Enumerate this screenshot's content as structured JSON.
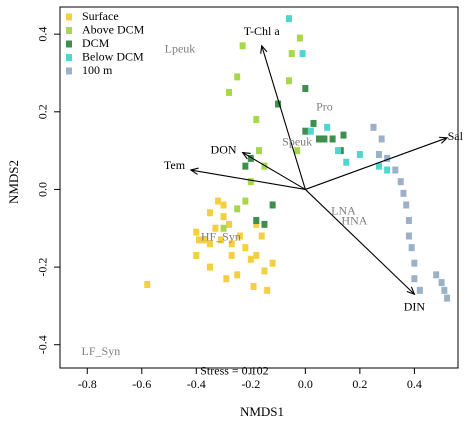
{
  "chart_data": {
    "type": "scatter",
    "xlabel": "NMDS1",
    "ylabel": "NMDS2",
    "xlim": [
      -0.9,
      0.56
    ],
    "ylim": [
      -0.46,
      0.47
    ],
    "x_ticks": [
      -0.8,
      -0.6,
      -0.4,
      -0.2,
      0.0,
      0.2,
      0.4
    ],
    "y_ticks": [
      -0.4,
      -0.2,
      0.0,
      0.2,
      0.4
    ],
    "legend": "top-left",
    "colors": {
      "Surface": "#F4D03F",
      "Above DCM": "#A8D84A",
      "DCM": "#3E8E4E",
      "Below DCM": "#4FD6D0",
      "100 m": "#9CB0C8",
      "arrow": "#000000",
      "taxa_label": "#7f7f7f"
    },
    "series": [
      {
        "name": "Surface",
        "points": [
          [
            -0.58,
            -0.245
          ],
          [
            -0.4,
            -0.11
          ],
          [
            -0.4,
            -0.17
          ],
          [
            -0.39,
            -0.13
          ],
          [
            -0.37,
            -0.13
          ],
          [
            -0.35,
            -0.14
          ],
          [
            -0.35,
            -0.06
          ],
          [
            -0.35,
            -0.2
          ],
          [
            -0.33,
            -0.1
          ],
          [
            -0.32,
            -0.03
          ],
          [
            -0.31,
            -0.13
          ],
          [
            -0.3,
            -0.07
          ],
          [
            -0.29,
            -0.23
          ],
          [
            -0.28,
            -0.09
          ],
          [
            -0.27,
            -0.14
          ],
          [
            -0.27,
            -0.17
          ],
          [
            -0.25,
            -0.22
          ],
          [
            -0.24,
            -0.12
          ],
          [
            -0.22,
            -0.15
          ],
          [
            -0.2,
            -0.18
          ],
          [
            -0.19,
            -0.25
          ],
          [
            -0.18,
            -0.17
          ],
          [
            -0.18,
            -0.09
          ],
          [
            -0.16,
            -0.12
          ],
          [
            -0.15,
            -0.21
          ],
          [
            -0.14,
            -0.26
          ],
          [
            -0.12,
            -0.19
          ],
          [
            -0.3,
            -0.04
          ]
        ]
      },
      {
        "name": "Above DCM",
        "points": [
          [
            -0.28,
            0.25
          ],
          [
            -0.25,
            0.29
          ],
          [
            -0.23,
            0.37
          ],
          [
            -0.18,
            0.18
          ],
          [
            -0.17,
            0.1
          ],
          [
            -0.15,
            0.06
          ],
          [
            -0.2,
            0.02
          ],
          [
            -0.22,
            -0.03
          ],
          [
            -0.25,
            -0.05
          ],
          [
            -0.3,
            -0.1
          ],
          [
            -0.05,
            0.35
          ],
          [
            -0.02,
            0.39
          ],
          [
            -0.06,
            0.28
          ],
          [
            -0.03,
            0.1
          ]
        ]
      },
      {
        "name": "DCM",
        "points": [
          [
            -0.1,
            0.22
          ],
          [
            0.0,
            0.26
          ],
          [
            0.03,
            0.17
          ],
          [
            0.05,
            0.13
          ],
          [
            0.07,
            0.13
          ],
          [
            0.1,
            0.13
          ],
          [
            0.13,
            0.1
          ],
          [
            0.14,
            0.14
          ],
          [
            -0.15,
            -0.09
          ],
          [
            -0.18,
            -0.08
          ],
          [
            -0.2,
            0.08
          ],
          [
            -0.22,
            0.06
          ],
          [
            -0.12,
            -0.04
          ],
          [
            0.0,
            0.15
          ]
        ]
      },
      {
        "name": "Below DCM",
        "points": [
          [
            -0.06,
            0.44
          ],
          [
            -0.01,
            0.35
          ],
          [
            0.02,
            0.15
          ],
          [
            0.08,
            0.16
          ],
          [
            0.12,
            0.1
          ],
          [
            0.15,
            0.07
          ],
          [
            0.2,
            0.09
          ],
          [
            0.27,
            0.06
          ],
          [
            0.3,
            0.05
          ]
        ]
      },
      {
        "name": "100 m",
        "points": [
          [
            0.25,
            0.16
          ],
          [
            0.28,
            0.13
          ],
          [
            0.3,
            0.08
          ],
          [
            0.33,
            0.05
          ],
          [
            0.35,
            0.02
          ],
          [
            0.36,
            -0.01
          ],
          [
            0.37,
            -0.04
          ],
          [
            0.38,
            -0.08
          ],
          [
            0.38,
            -0.12
          ],
          [
            0.39,
            -0.15
          ],
          [
            0.4,
            -0.19
          ],
          [
            0.4,
            -0.23
          ],
          [
            0.42,
            -0.26
          ],
          [
            0.48,
            -0.22
          ],
          [
            0.5,
            -0.24
          ],
          [
            0.51,
            -0.26
          ],
          [
            0.52,
            -0.28
          ],
          [
            0.27,
            0.09
          ]
        ]
      }
    ],
    "vectors": [
      {
        "label": "T-Chl a",
        "x": -0.16,
        "y": 0.37
      },
      {
        "label": "DON",
        "x": -0.23,
        "y": 0.095
      },
      {
        "label": "Tem",
        "x": -0.42,
        "y": 0.05
      },
      {
        "label": "Sal",
        "x": 0.52,
        "y": 0.133
      },
      {
        "label": "DIN",
        "x": 0.4,
        "y": -0.27
      }
    ],
    "vector_label_positions": {
      "T-Chl a": [
        -0.16,
        0.405
      ],
      "DON": [
        -0.3,
        0.1
      ],
      "Tem": [
        -0.48,
        0.06
      ],
      "Sal": [
        0.55,
        0.135
      ],
      "DIN": [
        0.4,
        -0.305
      ]
    },
    "taxa_labels": [
      {
        "label": "Lpeuk",
        "x": -0.46,
        "y": 0.36
      },
      {
        "label": "Pro",
        "x": 0.07,
        "y": 0.21
      },
      {
        "label": "Speuk",
        "x": -0.03,
        "y": 0.12
      },
      {
        "label": "LNA",
        "x": 0.14,
        "y": -0.058
      },
      {
        "label": "HNA",
        "x": 0.18,
        "y": -0.083
      },
      {
        "label": "HF_Syn",
        "x": -0.31,
        "y": -0.125
      },
      {
        "label": "LF_Syn",
        "x": -0.75,
        "y": -0.42
      }
    ],
    "annotation": {
      "label": "Stress =  0.102",
      "x": -0.26,
      "y": -0.47
    }
  }
}
